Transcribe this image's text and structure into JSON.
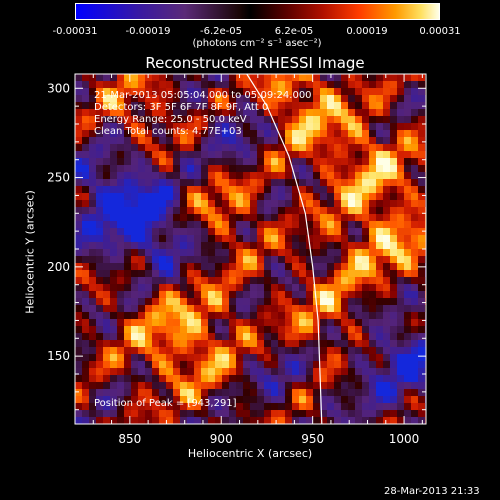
{
  "colorbar": {
    "ticks": [
      "-0.00031",
      "-0.00019",
      "-6.2e-05",
      "6.2e-05",
      "0.00019",
      "0.00031"
    ],
    "unit_label": "(photons cm⁻² s⁻¹ asec⁻²)"
  },
  "chart": {
    "title": "Reconstructed RHESSI Image",
    "info_lines": [
      "21-Mar-2013 05:05:04.000 to 05:09:24.000",
      "Detectors: 3F 5F 6F 7F 8F 9F, Att 0",
      "Energy Range: 25.0 - 50.0 keV",
      "Clean     Total counts: 4.77E+03"
    ],
    "peak_label": "Position of Peak = [943,291]",
    "footer_timestamp": "28-Mar-2013 21:33"
  },
  "chart_data": {
    "type": "heatmap",
    "title": "Reconstructed RHESSI Image",
    "xlabel": "Heliocentric X (arcsec)",
    "ylabel": "Heliocentric Y (arcsec)",
    "xlim": [
      820,
      1012
    ],
    "ylim": [
      112,
      308
    ],
    "xticks": [
      850,
      900,
      950,
      1000
    ],
    "yticks": [
      150,
      200,
      250,
      300
    ],
    "colorscale_range": [
      -0.00031,
      0.00031
    ],
    "peak": [
      943,
      291
    ],
    "limb_curve": [
      [
        914,
        308
      ],
      [
        925,
        290
      ],
      [
        937,
        262
      ],
      [
        946,
        230
      ],
      [
        950,
        200
      ],
      [
        953,
        170
      ],
      [
        954,
        140
      ],
      [
        955,
        112
      ]
    ]
  }
}
